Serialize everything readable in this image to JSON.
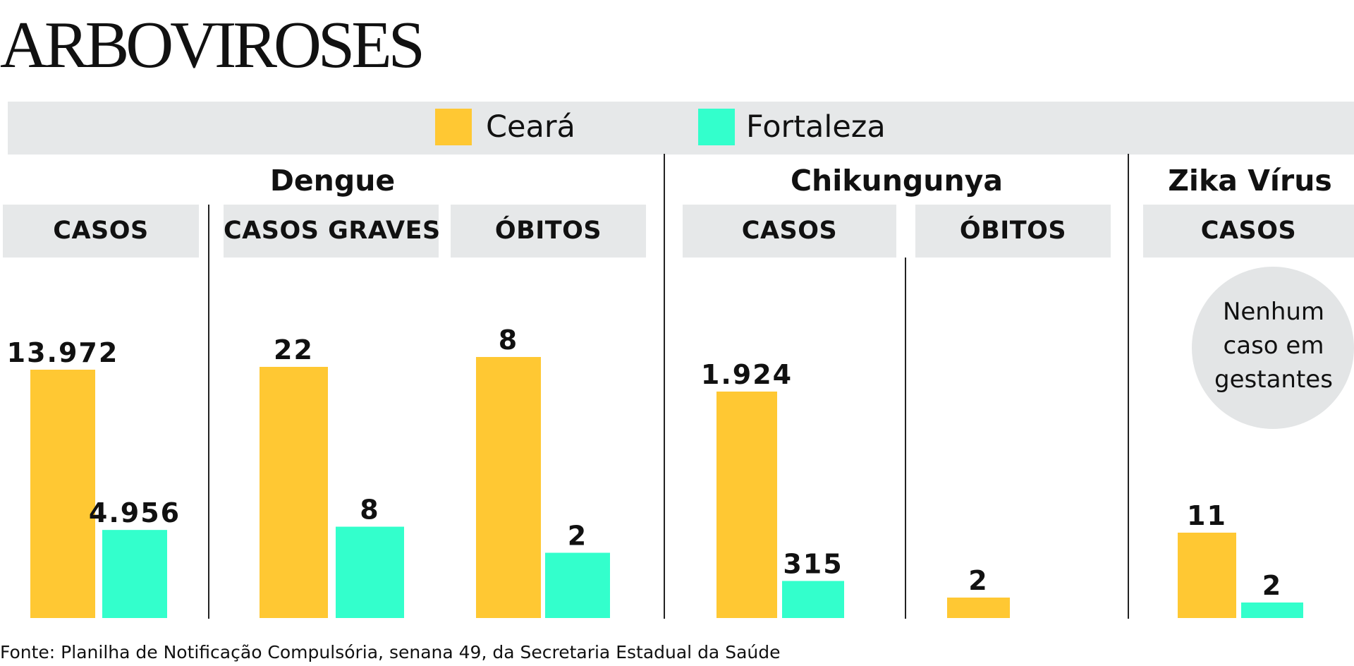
{
  "title": "ARBOVIROSES",
  "legend": [
    {
      "label": "Ceará",
      "color": "#ffc833"
    },
    {
      "label": "Fortaleza",
      "color": "#33ffcc"
    }
  ],
  "groups": [
    "Dengue",
    "Chikungunya",
    "Zika Vírus"
  ],
  "panels": [
    "CASOS",
    "CASOS GRAVES",
    "ÓBITOS",
    "CASOS",
    "ÓBITOS",
    "CASOS"
  ],
  "note": "Nenhum caso em gestantes",
  "footer": "Fonte: Planilha de Notificação Compulsória, senana 49, da Secretaria Estadual da Saúde",
  "chart_data": {
    "type": "bar",
    "title": "ARBOVIROSES",
    "legend": [
      "Ceará",
      "Fortaleza"
    ],
    "colors": {
      "Ceará": "#ffc833",
      "Fortaleza": "#33ffcc"
    },
    "axes": "none",
    "panels": [
      {
        "group": "Dengue",
        "metric": "CASOS",
        "values": [
          {
            "series": "Ceará",
            "value": 13972,
            "label": "13.972"
          },
          {
            "series": "Fortaleza",
            "value": 4956,
            "label": "4.956"
          }
        ]
      },
      {
        "group": "Dengue",
        "metric": "CASOS GRAVES",
        "values": [
          {
            "series": "Ceará",
            "value": 22,
            "label": "22"
          },
          {
            "series": "Fortaleza",
            "value": 8,
            "label": "8"
          }
        ]
      },
      {
        "group": "Dengue",
        "metric": "ÓBITOS",
        "values": [
          {
            "series": "Ceará",
            "value": 8,
            "label": "8"
          },
          {
            "series": "Fortaleza",
            "value": 2,
            "label": "2"
          }
        ]
      },
      {
        "group": "Chikungunya",
        "metric": "CASOS",
        "values": [
          {
            "series": "Ceará",
            "value": 1924,
            "label": "1.924"
          },
          {
            "series": "Fortaleza",
            "value": 315,
            "label": "315"
          }
        ]
      },
      {
        "group": "Chikungunya",
        "metric": "ÓBITOS",
        "values": [
          {
            "series": "Ceará",
            "value": 2,
            "label": "2"
          }
        ]
      },
      {
        "group": "Zika Vírus",
        "metric": "CASOS",
        "values": [
          {
            "series": "Ceará",
            "value": 11,
            "label": "11"
          },
          {
            "series": "Fortaleza",
            "value": 2,
            "label": "2"
          }
        ]
      }
    ]
  }
}
